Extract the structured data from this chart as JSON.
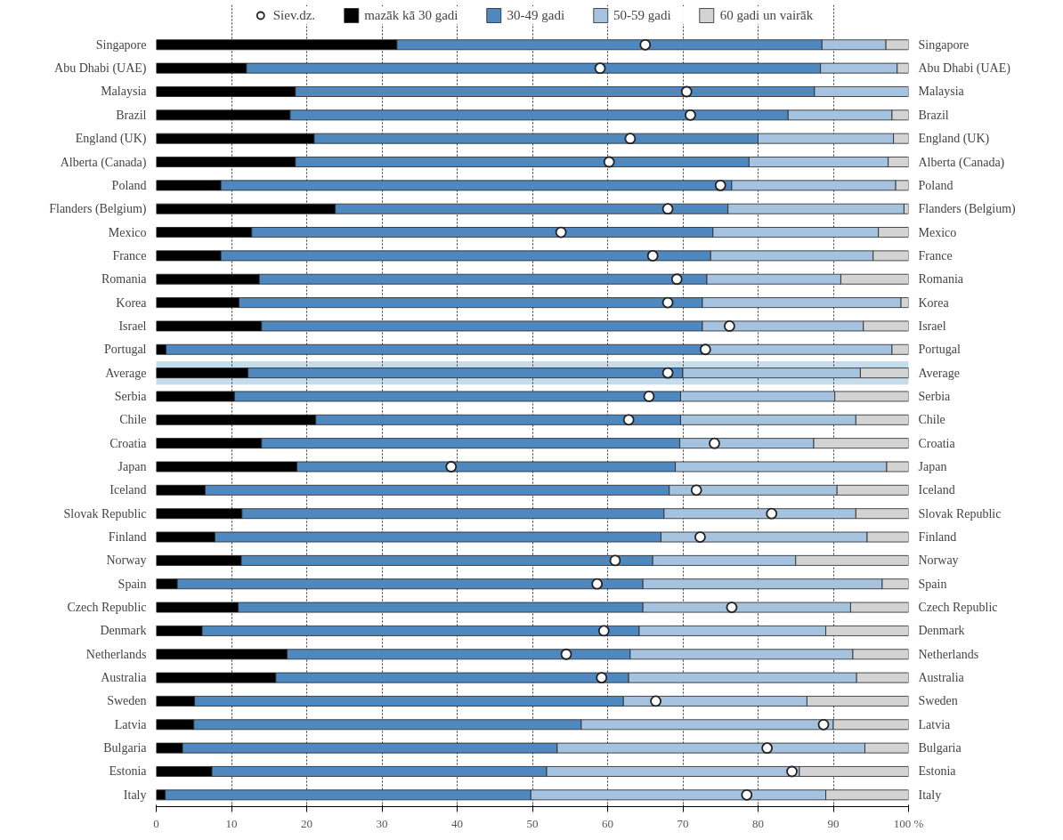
{
  "chart_data": {
    "type": "bar",
    "orientation": "horizontal",
    "stacked": true,
    "categories": [
      "Singapore",
      "Abu Dhabi (UAE)",
      "Malaysia",
      "Brazil",
      "England (UK)",
      "Alberta (Canada)",
      "Poland",
      "Flanders (Belgium)",
      "Mexico",
      "France",
      "Romania",
      "Korea",
      "Israel",
      "Portugal",
      "Average",
      "Serbia",
      "Chile",
      "Croatia",
      "Japan",
      "Iceland",
      "Slovak Republic",
      "Finland",
      "Norway",
      "Spain",
      "Czech Republic",
      "Denmark",
      "Netherlands",
      "Australia",
      "Sweden",
      "Latvia",
      "Bulgaria",
      "Estonia",
      "Italy"
    ],
    "series": [
      {
        "name": "mazāk kā 30 gadi",
        "color": "#000000",
        "values": [
          32,
          12,
          18.5,
          17.8,
          21,
          18.5,
          8.6,
          23.8,
          12.7,
          8.6,
          13.7,
          11,
          14,
          1.3,
          12.2,
          10.4,
          21.2,
          14,
          18.7,
          6.5,
          11.4,
          7.8,
          11.3,
          2.8,
          10.9,
          6.1,
          17.4,
          15.9,
          5.1,
          5,
          3.5,
          7.4,
          1.2
        ]
      },
      {
        "name": "30-49 gadi",
        "color": "#4f88bf",
        "values": [
          56.5,
          76.3,
          69,
          66.2,
          59,
          60.3,
          67.9,
          52.2,
          61.3,
          65.1,
          59.5,
          61.6,
          58.6,
          71.2,
          57.8,
          59.3,
          48.5,
          55.6,
          50.3,
          61.7,
          56.1,
          59.3,
          54.7,
          61.9,
          53.8,
          58.1,
          45.6,
          46.9,
          57,
          51.5,
          49.8,
          44.5,
          48.6
        ]
      },
      {
        "name": "50-59 gadi",
        "color": "#a5c2de",
        "values": [
          8.5,
          10.2,
          12.5,
          13.8,
          18,
          18.5,
          21.8,
          23.4,
          22,
          21.6,
          17.8,
          26.4,
          21.4,
          25.3,
          23.6,
          20.5,
          23.3,
          17.8,
          28.1,
          22.3,
          25.5,
          27.4,
          19,
          31.8,
          27.6,
          24.8,
          29.6,
          30.3,
          24.4,
          33.5,
          40.9,
          33.6,
          39.2
        ]
      },
      {
        "name": "60 gadi un vairāk",
        "color": "#d3d3d3",
        "values": [
          3,
          1.5,
          0,
          2.2,
          2,
          2.7,
          1.7,
          0.6,
          4,
          4.7,
          9,
          1,
          6,
          2.2,
          6.4,
          9.8,
          7,
          12.6,
          2.9,
          9.5,
          7,
          5.5,
          15,
          3.5,
          7.7,
          11,
          7.4,
          6.9,
          13.5,
          10,
          5.8,
          14.5,
          11
        ]
      },
      {
        "name": "Siev.dz.",
        "type": "scatter",
        "color": "#ffffff",
        "marker": "circle",
        "values": [
          65,
          59,
          70.5,
          71,
          63,
          60.2,
          75,
          68,
          53.8,
          66,
          69.2,
          68,
          76.2,
          73,
          68,
          65.5,
          62.8,
          74.2,
          39.2,
          71.8,
          81.8,
          72.3,
          61,
          58.6,
          76.5,
          59.5,
          54.5,
          59.2,
          66.4,
          88.7,
          81.2,
          84.5,
          78.5
        ]
      }
    ],
    "xlim": [
      0,
      100
    ],
    "xticks": [
      0,
      10,
      20,
      30,
      40,
      50,
      60,
      70,
      80,
      90,
      {
        "value": 100,
        "label": "100 %"
      }
    ],
    "grid": "x",
    "legend": "top",
    "bands": [
      {
        "axis": "y",
        "from": "Average",
        "to": "Average",
        "label": null,
        "color": "#c5dcec"
      }
    ]
  }
}
